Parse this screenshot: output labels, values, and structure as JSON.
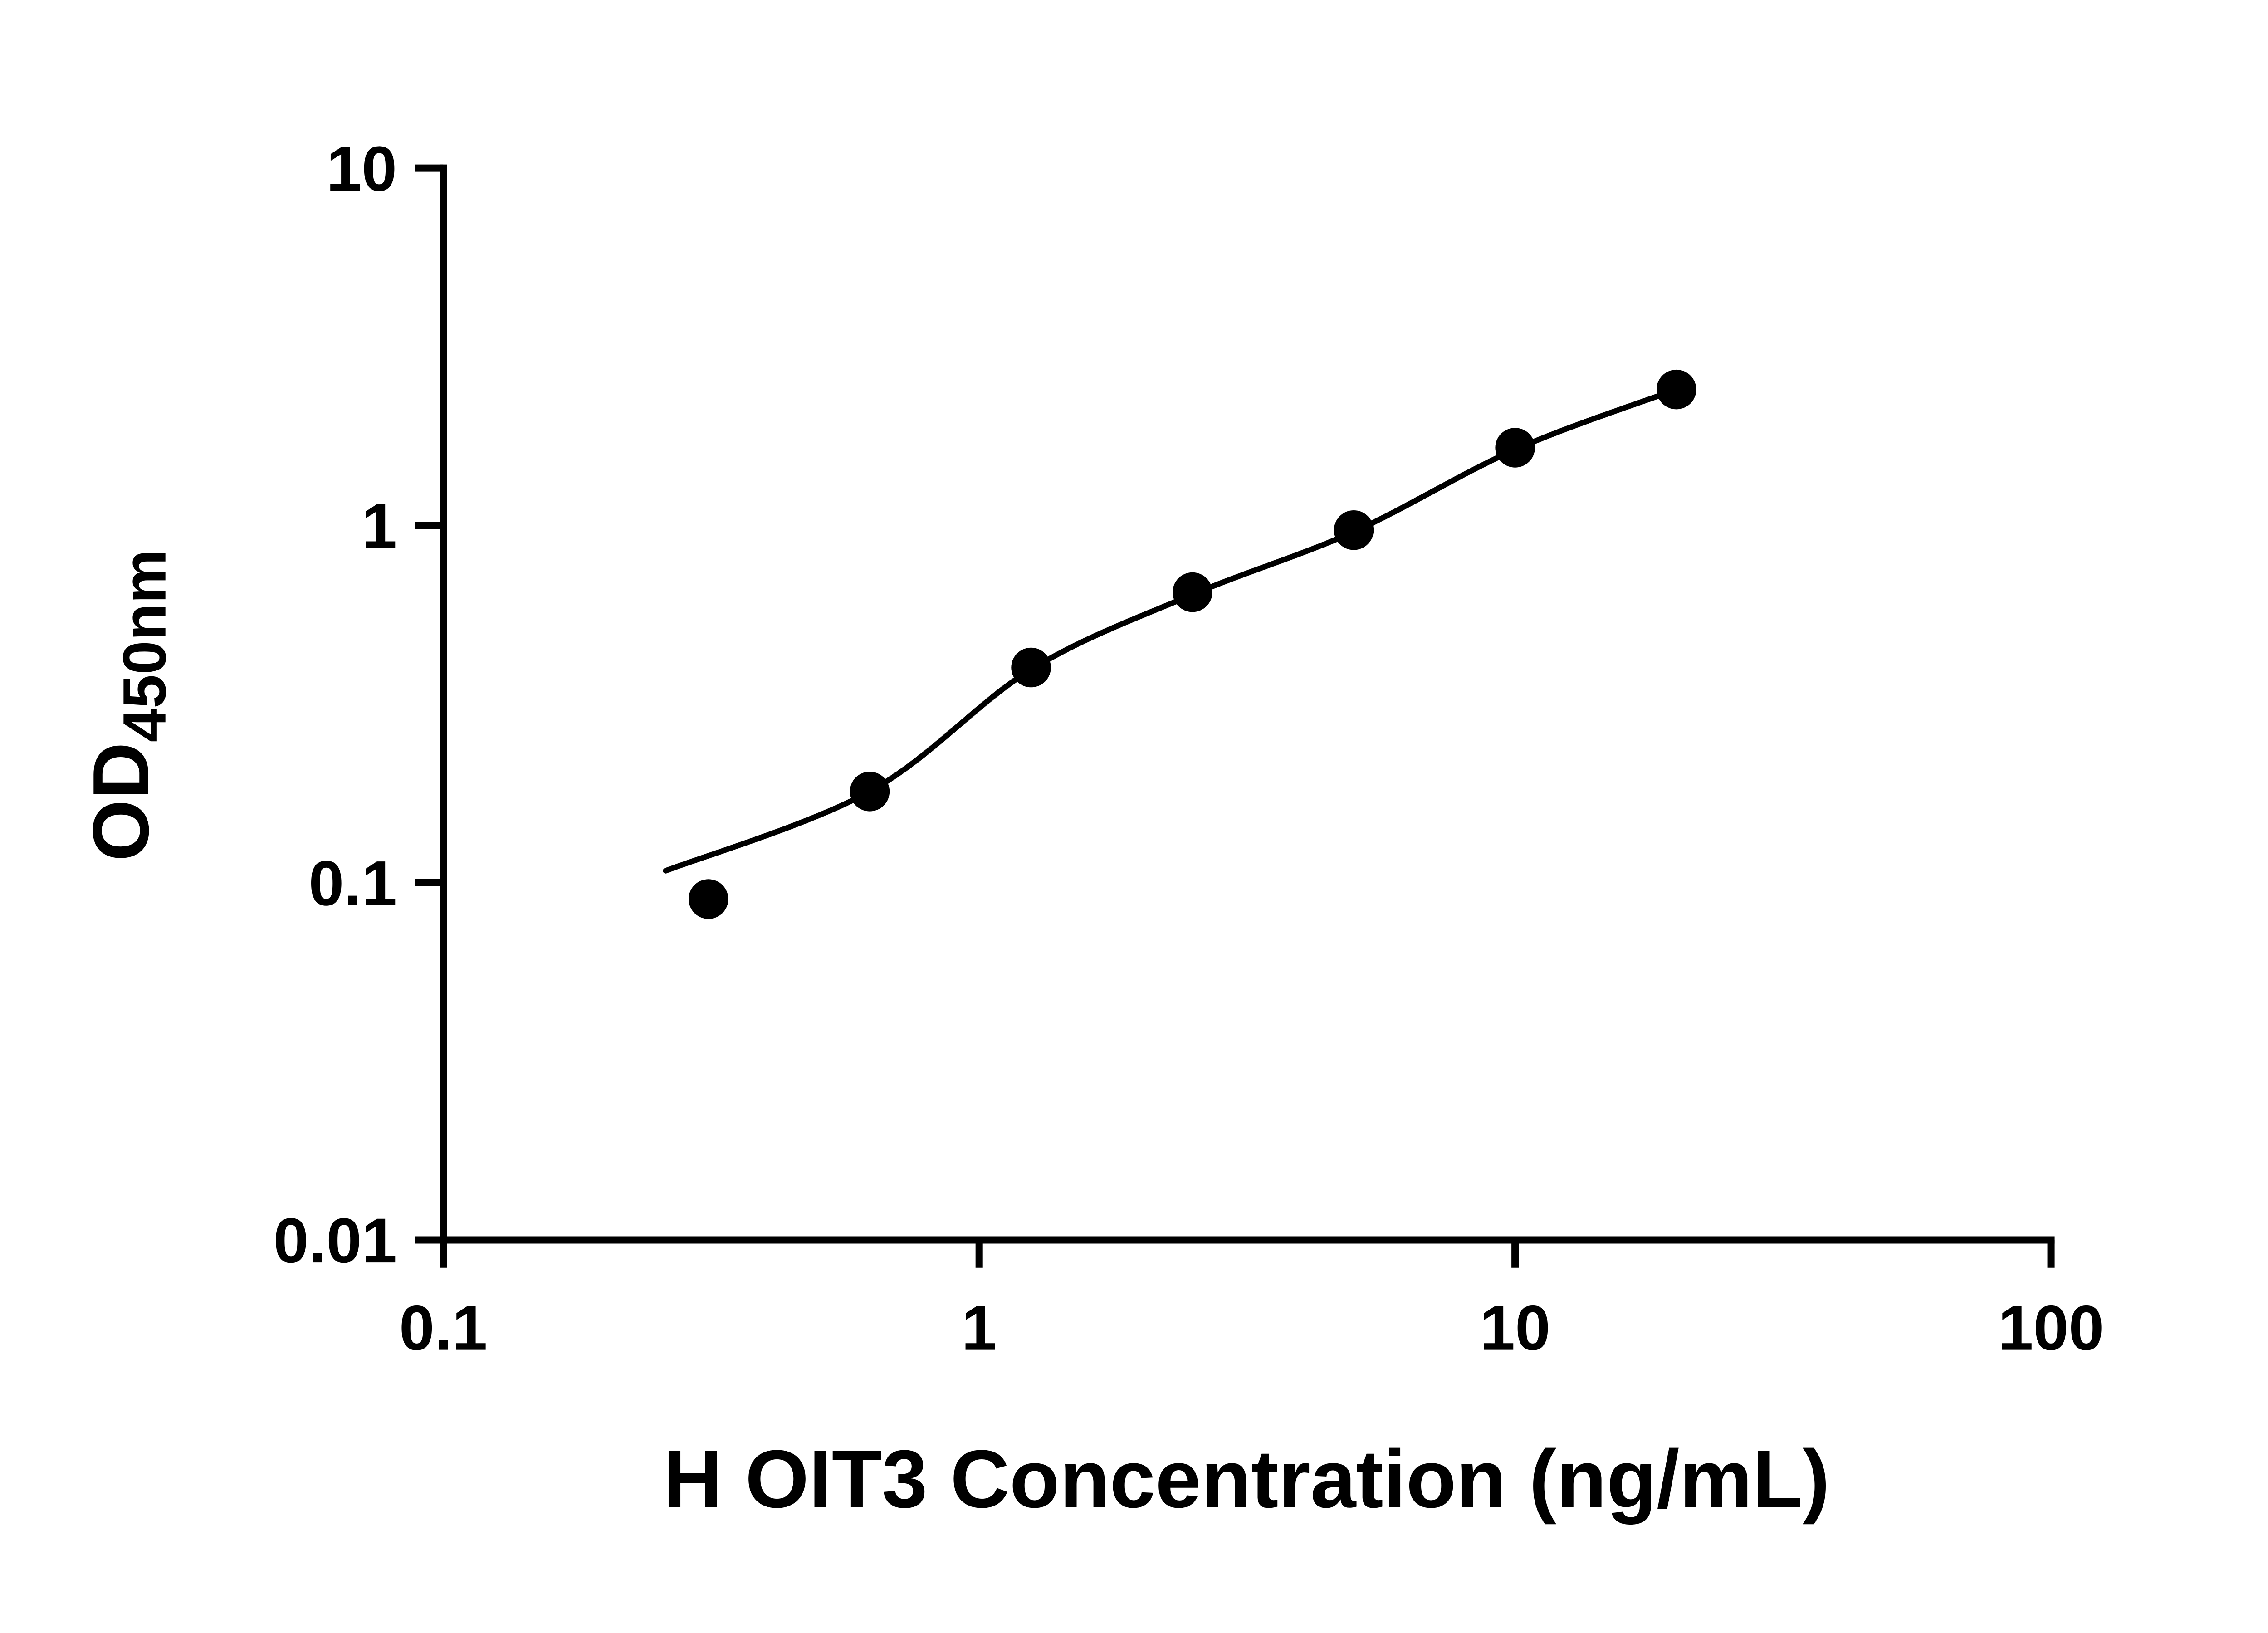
{
  "page": {
    "background_color": "#ffffff",
    "foreground_color": "#000000"
  },
  "chart_data": {
    "type": "scatter",
    "title": "",
    "xlabel": "H OIT3 Concentration (ng/mL)",
    "ylabel": "OD450nm",
    "ylabel_main": "OD",
    "ylabel_sub": "450nm",
    "x_scale": "log",
    "y_scale": "log",
    "xlim": [
      0.1,
      100
    ],
    "ylim": [
      0.01,
      10
    ],
    "grid": false,
    "legend": "none",
    "marker_color": "#000000",
    "line_color": "#000000",
    "axis_color": "#000000",
    "x_ticks": {
      "values": [
        0.1,
        1,
        10,
        100
      ],
      "labels": [
        "0.1",
        "1",
        "10",
        "100"
      ]
    },
    "y_ticks": {
      "values": [
        0.01,
        0.1,
        1,
        10
      ],
      "labels": [
        "0.01",
        "0.1",
        "1",
        "10"
      ]
    },
    "points": [
      {
        "x": 0.3125,
        "y": 0.09
      },
      {
        "x": 0.625,
        "y": 0.18
      },
      {
        "x": 1.25,
        "y": 0.4
      },
      {
        "x": 2.5,
        "y": 0.65
      },
      {
        "x": 5,
        "y": 0.97
      },
      {
        "x": 10,
        "y": 1.65
      },
      {
        "x": 20,
        "y": 2.4
      }
    ],
    "fit_curve": [
      {
        "x": 0.26,
        "y": 0.108
      },
      {
        "x": 0.625,
        "y": 0.18
      },
      {
        "x": 1.25,
        "y": 0.395
      },
      {
        "x": 2.5,
        "y": 0.64
      },
      {
        "x": 5,
        "y": 0.96
      },
      {
        "x": 10,
        "y": 1.63
      },
      {
        "x": 20,
        "y": 2.4
      }
    ]
  }
}
